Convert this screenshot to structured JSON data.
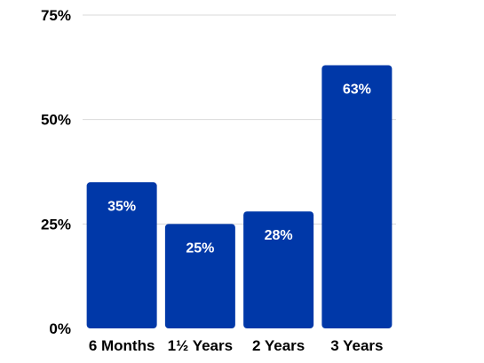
{
  "chart_data": {
    "type": "bar",
    "title": "",
    "xlabel": "",
    "ylabel": "",
    "categories": [
      "6 Months",
      "1½ Years",
      "2 Years",
      "3 Years"
    ],
    "values": [
      35,
      25,
      28,
      63
    ],
    "value_labels": [
      "35%",
      "25%",
      "28%",
      "63%"
    ],
    "y_ticks": [
      0,
      25,
      50,
      75
    ],
    "y_tick_labels": [
      "0%",
      "25%",
      "50%",
      "75%"
    ],
    "ylim": [
      0,
      75
    ],
    "grid": true,
    "legend": "none",
    "colors": {
      "bar": "#0038a8",
      "grid": "#d9d9d9",
      "text": "#000000",
      "label": "#ffffff"
    }
  }
}
